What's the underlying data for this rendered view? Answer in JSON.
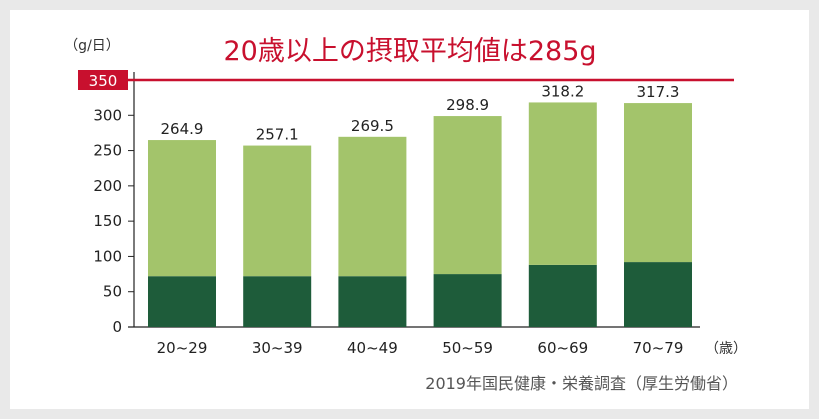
{
  "chart_data": {
    "type": "bar",
    "title": "20歳以上の摂取平均値は285g",
    "unit_label": "（g/日）",
    "x_unit_label": "（歳）",
    "source": "2019年国民健康・栄養調査（厚生労働省）",
    "categories": [
      "20~29",
      "30~39",
      "40~49",
      "50~59",
      "60~69",
      "70~79"
    ],
    "values": [
      264.9,
      257.1,
      269.5,
      298.9,
      318.2,
      317.3
    ],
    "value_labels": [
      "264.9",
      "257.1",
      "269.5",
      "298.9",
      "318.2",
      "317.3"
    ],
    "segments": [
      {
        "values": [
          72,
          72,
          72,
          75,
          88,
          92
        ],
        "color": "#1e5c3a"
      },
      {
        "values": [
          192.9,
          185.1,
          197.5,
          223.9,
          230.2,
          225.3
        ],
        "color": "#a3c46b"
      }
    ],
    "reference_line": {
      "value": 350,
      "label": "350",
      "color": "#c8102e"
    },
    "ylim": [
      0,
      350
    ],
    "yticks": [
      0,
      50,
      100,
      150,
      200,
      250,
      300
    ],
    "ytick_labels": [
      "0",
      "50",
      "100",
      "150",
      "200",
      "250",
      "300"
    ],
    "grid": false,
    "legend": "none"
  }
}
